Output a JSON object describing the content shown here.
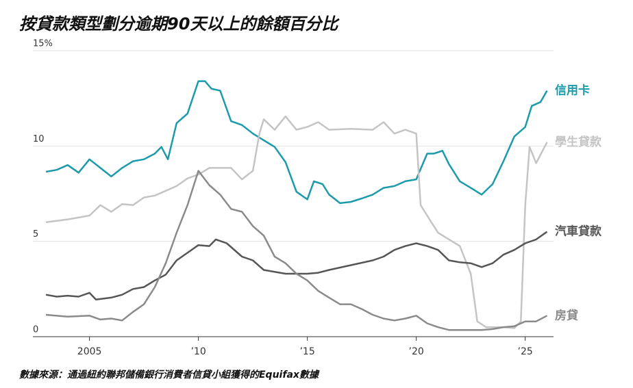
{
  "chart_data": {
    "type": "line",
    "title": "按貸款類型劃分逾期90天以上的餘額百分比",
    "source": "數據來源：通過紐約聯邦儲備銀行消費者信貸小組獲得的Equifax數據",
    "xlim": [
      2003,
      2026.3
    ],
    "xticks": [
      2005,
      {
        "value": 2010,
        "label": "’10"
      },
      {
        "value": 2015,
        "label": "’15"
      },
      {
        "value": 2020,
        "label": "’20"
      },
      {
        "value": 2025,
        "label": "’25"
      }
    ],
    "ylim": [
      0,
      15
    ],
    "yticks": [
      0,
      5,
      10,
      {
        "value": 15,
        "label": "15%"
      }
    ],
    "grid": true,
    "series": [
      {
        "name": "信用卡",
        "color": "#1b9aaa",
        "x": [
          2003,
          2003.5,
          2004,
          2004.5,
          2005,
          2005.5,
          2006,
          2006.5,
          2007,
          2007.5,
          2008,
          2008.3,
          2008.6,
          2009,
          2009.5,
          2010,
          2010.3,
          2010.6,
          2011,
          2011.5,
          2012,
          2012.5,
          2013,
          2013.5,
          2014,
          2014.5,
          2015,
          2015.3,
          2015.7,
          2016,
          2016.5,
          2017,
          2017.5,
          2018,
          2018.5,
          2019,
          2019.5,
          2020,
          2020.5,
          2020.8,
          2021.2,
          2021.5,
          2022,
          2022.5,
          2023,
          2023.5,
          2024,
          2024.5,
          2025,
          2025.3,
          2025.7,
          2026
        ],
        "values": [
          8.65,
          8.75,
          9.0,
          8.6,
          9.3,
          8.85,
          8.4,
          8.85,
          9.2,
          9.3,
          9.6,
          9.95,
          9.3,
          11.2,
          11.7,
          13.4,
          13.4,
          13.0,
          12.9,
          11.3,
          11.1,
          10.65,
          10.3,
          9.95,
          9.15,
          7.6,
          7.2,
          8.15,
          8.0,
          7.45,
          7.0,
          7.07,
          7.25,
          7.45,
          7.8,
          7.9,
          8.15,
          8.25,
          9.6,
          9.6,
          9.75,
          9.05,
          8.15,
          7.8,
          7.45,
          8.0,
          9.2,
          10.5,
          11.0,
          12.1,
          12.3,
          12.9
        ]
      },
      {
        "name": "學生貸款",
        "color": "#c4c4c4",
        "x": [
          2003,
          2004,
          2005,
          2005.5,
          2006,
          2006.5,
          2007,
          2007.5,
          2008,
          2009,
          2009.5,
          2010,
          2010.5,
          2011,
          2011.5,
          2012,
          2012.5,
          2012.8,
          2013,
          2013.5,
          2014,
          2014.5,
          2015,
          2015.5,
          2016,
          2017,
          2018,
          2018.5,
          2019,
          2019.5,
          2020,
          2020.2,
          2020.5,
          2021,
          2022,
          2022.5,
          2022.8,
          2023.2,
          2024,
          2024.5,
          2024.8,
          2025,
          2025.2,
          2025.5,
          2026
        ],
        "values": [
          6.0,
          6.15,
          6.35,
          6.9,
          6.55,
          6.95,
          6.9,
          7.3,
          7.4,
          7.9,
          8.3,
          8.5,
          8.85,
          8.85,
          8.85,
          8.25,
          8.7,
          10.65,
          11.4,
          10.85,
          11.55,
          10.85,
          11.0,
          11.25,
          10.85,
          10.9,
          10.85,
          11.25,
          10.65,
          10.85,
          10.65,
          6.9,
          6.35,
          5.45,
          4.75,
          3.3,
          0.8,
          0.5,
          0.5,
          0.45,
          0.8,
          6.9,
          9.95,
          9.1,
          10.2
        ]
      },
      {
        "name": "汽車貸款",
        "color": "#555555",
        "x": [
          2003,
          2003.5,
          2004,
          2004.5,
          2005,
          2005.3,
          2006,
          2006.5,
          2007,
          2007.5,
          2008,
          2008.5,
          2009,
          2009.5,
          2010,
          2010.5,
          2010.8,
          2011.3,
          2012,
          2012.5,
          2013,
          2014,
          2015,
          2015.5,
          2016,
          2017,
          2018,
          2018.5,
          2019,
          2019.5,
          2020,
          2020.5,
          2021,
          2021.5,
          2022,
          2022.5,
          2023,
          2023.5,
          2024,
          2024.5,
          2025,
          2025.5,
          2026
        ],
        "values": [
          2.2,
          2.1,
          2.15,
          2.1,
          2.3,
          1.95,
          2.05,
          2.2,
          2.5,
          2.6,
          2.95,
          3.25,
          4.0,
          4.4,
          4.8,
          4.75,
          5.1,
          4.9,
          4.2,
          4.0,
          3.5,
          3.3,
          3.3,
          3.35,
          3.5,
          3.75,
          4.0,
          4.2,
          4.55,
          4.75,
          4.9,
          4.75,
          4.55,
          4.0,
          3.9,
          3.85,
          3.65,
          3.85,
          4.3,
          4.55,
          4.9,
          5.1,
          5.5
        ]
      },
      {
        "name": "房貸",
        "color": "#8a8a8a",
        "x": [
          2003,
          2004,
          2005,
          2005.5,
          2006,
          2006.5,
          2007,
          2007.5,
          2008,
          2008.5,
          2009,
          2009.5,
          2010,
          2010.5,
          2011,
          2011.5,
          2012,
          2012.5,
          2013,
          2013.5,
          2014,
          2014.5,
          2015,
          2015.5,
          2016,
          2016.5,
          2017,
          2017.5,
          2018,
          2018.5,
          2019,
          2019.5,
          2020,
          2020.5,
          2021,
          2021.5,
          2022,
          2023,
          2023.5,
          2024,
          2024.5,
          2025,
          2025.5,
          2026
        ],
        "values": [
          1.15,
          1.05,
          1.1,
          0.9,
          0.95,
          0.85,
          1.3,
          1.7,
          2.6,
          3.85,
          5.45,
          6.9,
          8.7,
          7.95,
          7.45,
          6.7,
          6.55,
          5.8,
          5.3,
          4.2,
          3.85,
          3.3,
          2.95,
          2.4,
          2.05,
          1.7,
          1.7,
          1.45,
          1.15,
          0.95,
          0.85,
          0.95,
          1.1,
          0.7,
          0.5,
          0.35,
          0.35,
          0.35,
          0.4,
          0.5,
          0.55,
          0.8,
          0.8,
          1.1
        ]
      }
    ]
  }
}
